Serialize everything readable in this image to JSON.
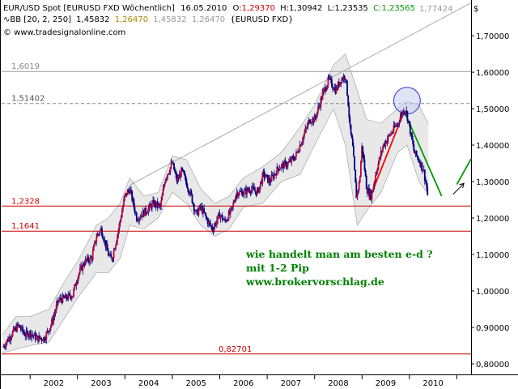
{
  "header": {
    "line1": {
      "symbol": "EUR/USD Spot [EURUSD FXD  Wöchentlich]",
      "date": "16.05.2010",
      "open_label": "O:",
      "open": "1,29370",
      "high_label": "H:",
      "high": "1,30942",
      "low_label": "L:",
      "low": "1,23535",
      "close_label": "C:",
      "close": "1,23565"
    },
    "line2": {
      "bb": "BB [20, 2, 250]",
      "v1": "1,45832",
      "v2": "1,26470",
      "v3": "1,45832",
      "v4": "1,26470",
      "suffix": "{EURUSD FXD}"
    },
    "line3": "© www.tradesignalonline.com",
    "corner_value": "1,77424",
    "currency_symbol": "$"
  },
  "annotation": {
    "lines": [
      "wie handelt man am besten e-d ?",
      "mit 1-2 Pip",
      "www.brokervorschlag.de"
    ],
    "color": "#008000"
  },
  "colors": {
    "candle": "#000080",
    "candle_up": "#cc0033",
    "band_fill": "#e8e8e8",
    "band_line": "#b0b0b0",
    "support_red": "#cc0000",
    "resistance_gray": "#999999",
    "trend_red": "#ff0000",
    "trend_green": "#009900",
    "circle": "#3333cc"
  },
  "chart_data": {
    "type": "candlestick",
    "title": "EUR/USD Spot [EURUSD FXD  Wöchentlich]",
    "x_axis": {
      "labels": [
        "2002",
        "2003",
        "2004",
        "2005",
        "2006",
        "2007",
        "2008",
        "2009",
        "2010"
      ],
      "range": [
        2001.4,
        2011.3
      ]
    },
    "y_axis": {
      "ticks": [
        "0,80000",
        "0,90000",
        "1,00000",
        "1,10000",
        "1,20000",
        "1,30000",
        "1,40000",
        "1,50000",
        "1,60000",
        "1,70000"
      ],
      "range": [
        0.771,
        1.798
      ],
      "position": "right"
    },
    "price_path": [
      [
        2001.42,
        0.845
      ],
      [
        2001.6,
        0.88
      ],
      [
        2001.75,
        0.905
      ],
      [
        2001.9,
        0.88
      ],
      [
        2002.0,
        0.885
      ],
      [
        2002.15,
        0.87
      ],
      [
        2002.3,
        0.87
      ],
      [
        2002.45,
        0.91
      ],
      [
        2002.6,
        0.975
      ],
      [
        2002.75,
        0.98
      ],
      [
        2002.9,
        0.99
      ],
      [
        2003.0,
        1.04
      ],
      [
        2003.15,
        1.08
      ],
      [
        2003.3,
        1.09
      ],
      [
        2003.4,
        1.15
      ],
      [
        2003.5,
        1.17
      ],
      [
        2003.65,
        1.1
      ],
      [
        2003.72,
        1.085
      ],
      [
        2003.85,
        1.16
      ],
      [
        2004.0,
        1.26
      ],
      [
        2004.1,
        1.28
      ],
      [
        2004.25,
        1.2
      ],
      [
        2004.45,
        1.22
      ],
      [
        2004.6,
        1.24
      ],
      [
        2004.75,
        1.23
      ],
      [
        2004.85,
        1.31
      ],
      [
        2005.0,
        1.35
      ],
      [
        2005.1,
        1.3
      ],
      [
        2005.2,
        1.33
      ],
      [
        2005.4,
        1.26
      ],
      [
        2005.5,
        1.21
      ],
      [
        2005.6,
        1.23
      ],
      [
        2005.75,
        1.19
      ],
      [
        2005.85,
        1.17
      ],
      [
        2006.0,
        1.21
      ],
      [
        2006.1,
        1.19
      ],
      [
        2006.25,
        1.22
      ],
      [
        2006.35,
        1.27
      ],
      [
        2006.5,
        1.27
      ],
      [
        2006.65,
        1.28
      ],
      [
        2006.8,
        1.27
      ],
      [
        2006.92,
        1.32
      ],
      [
        2007.05,
        1.3
      ],
      [
        2007.25,
        1.34
      ],
      [
        2007.45,
        1.35
      ],
      [
        2007.6,
        1.37
      ],
      [
        2007.75,
        1.42
      ],
      [
        2007.9,
        1.47
      ],
      [
        2008.0,
        1.47
      ],
      [
        2008.2,
        1.55
      ],
      [
        2008.3,
        1.58
      ],
      [
        2008.45,
        1.55
      ],
      [
        2008.55,
        1.58
      ],
      [
        2008.65,
        1.59
      ],
      [
        2008.7,
        1.53
      ],
      [
        2008.75,
        1.44
      ],
      [
        2008.8,
        1.4
      ],
      [
        2008.88,
        1.26
      ],
      [
        2008.95,
        1.3
      ],
      [
        2009.0,
        1.4
      ],
      [
        2009.1,
        1.28
      ],
      [
        2009.2,
        1.26
      ],
      [
        2009.3,
        1.33
      ],
      [
        2009.45,
        1.4
      ],
      [
        2009.55,
        1.42
      ],
      [
        2009.65,
        1.44
      ],
      [
        2009.75,
        1.46
      ],
      [
        2009.85,
        1.49
      ],
      [
        2009.92,
        1.5
      ],
      [
        2010.0,
        1.45
      ],
      [
        2010.1,
        1.38
      ],
      [
        2010.2,
        1.36
      ],
      [
        2010.3,
        1.33
      ],
      [
        2010.37,
        1.28
      ],
      [
        2010.4,
        1.236
      ]
    ],
    "bollinger": {
      "name": "BB [20, 2, 250]",
      "upper": [
        [
          2001.42,
          0.88
        ],
        [
          2001.7,
          0.93
        ],
        [
          2002.0,
          0.93
        ],
        [
          2002.4,
          0.95
        ],
        [
          2002.7,
          1.02
        ],
        [
          2003.0,
          1.08
        ],
        [
          2003.4,
          1.18
        ],
        [
          2003.65,
          1.2
        ],
        [
          2003.9,
          1.24
        ],
        [
          2004.1,
          1.31
        ],
        [
          2004.4,
          1.26
        ],
        [
          2004.7,
          1.27
        ],
        [
          2005.0,
          1.37
        ],
        [
          2005.3,
          1.36
        ],
        [
          2005.6,
          1.28
        ],
        [
          2005.9,
          1.24
        ],
        [
          2006.2,
          1.26
        ],
        [
          2006.5,
          1.31
        ],
        [
          2006.9,
          1.34
        ],
        [
          2007.3,
          1.38
        ],
        [
          2007.7,
          1.45
        ],
        [
          2008.0,
          1.51
        ],
        [
          2008.4,
          1.62
        ],
        [
          2008.65,
          1.65
        ],
        [
          2008.9,
          1.55
        ],
        [
          2009.1,
          1.47
        ],
        [
          2009.4,
          1.46
        ],
        [
          2009.75,
          1.5
        ],
        [
          2009.95,
          1.52
        ],
        [
          2010.2,
          1.51
        ],
        [
          2010.4,
          1.458
        ]
      ],
      "lower": [
        [
          2001.42,
          0.83
        ],
        [
          2001.7,
          0.84
        ],
        [
          2002.0,
          0.85
        ],
        [
          2002.4,
          0.86
        ],
        [
          2002.7,
          0.92
        ],
        [
          2003.0,
          0.98
        ],
        [
          2003.4,
          1.05
        ],
        [
          2003.65,
          1.05
        ],
        [
          2003.9,
          1.09
        ],
        [
          2004.1,
          1.18
        ],
        [
          2004.4,
          1.17
        ],
        [
          2004.7,
          1.2
        ],
        [
          2005.0,
          1.27
        ],
        [
          2005.3,
          1.24
        ],
        [
          2005.6,
          1.18
        ],
        [
          2005.9,
          1.15
        ],
        [
          2006.2,
          1.17
        ],
        [
          2006.5,
          1.23
        ],
        [
          2006.9,
          1.24
        ],
        [
          2007.3,
          1.3
        ],
        [
          2007.7,
          1.32
        ],
        [
          2008.0,
          1.4
        ],
        [
          2008.4,
          1.5
        ],
        [
          2008.65,
          1.4
        ],
        [
          2008.9,
          1.18
        ],
        [
          2009.1,
          1.22
        ],
        [
          2009.4,
          1.27
        ],
        [
          2009.75,
          1.38
        ],
        [
          2009.95,
          1.4
        ],
        [
          2010.2,
          1.3
        ],
        [
          2010.4,
          1.265
        ]
      ]
    },
    "horizontal_lines": [
      {
        "value": 1.6019,
        "label": "1,6019",
        "color": "#999999",
        "style": "solid",
        "label_color": "#888888"
      },
      {
        "value": 1.51402,
        "label": "1,51402",
        "color": "#888888",
        "style": "dashed",
        "label_color": "#555555"
      },
      {
        "value": 1.2328,
        "label": "1,2328",
        "color": "#cc0000",
        "style": "solid",
        "label_color": "#cc0000"
      },
      {
        "value": 1.1641,
        "label": "1,1641",
        "color": "#cc0000",
        "style": "solid",
        "label_color": "#cc0000"
      },
      {
        "value": 0.82701,
        "label": "0,82701",
        "color": "#cc0000",
        "style": "solid",
        "label_color": "#cc0000"
      }
    ],
    "drawings": [
      {
        "kind": "trendline",
        "color": "#999999",
        "from": [
          2004.1,
          1.29
        ],
        "to": [
          2011.3,
          1.79
        ]
      },
      {
        "kind": "trendline",
        "color": "#ff0000",
        "from": [
          2009.15,
          1.25
        ],
        "to": [
          2009.85,
          1.48
        ]
      },
      {
        "kind": "trendline",
        "color": "#009900",
        "from": [
          2009.9,
          1.49
        ],
        "to": [
          2010.68,
          1.26
        ]
      },
      {
        "kind": "circle",
        "color": "#3333cc",
        "center": [
          2009.95,
          1.522
        ],
        "radius_years": 0.28
      },
      {
        "kind": "arrow",
        "color": "#000000",
        "from": [
          2010.92,
          1.265
        ],
        "to": [
          2011.15,
          1.295
        ]
      },
      {
        "kind": "trendline",
        "color": "#009900",
        "from": [
          2011.0,
          1.292
        ],
        "to": [
          2011.3,
          1.362
        ]
      }
    ]
  }
}
